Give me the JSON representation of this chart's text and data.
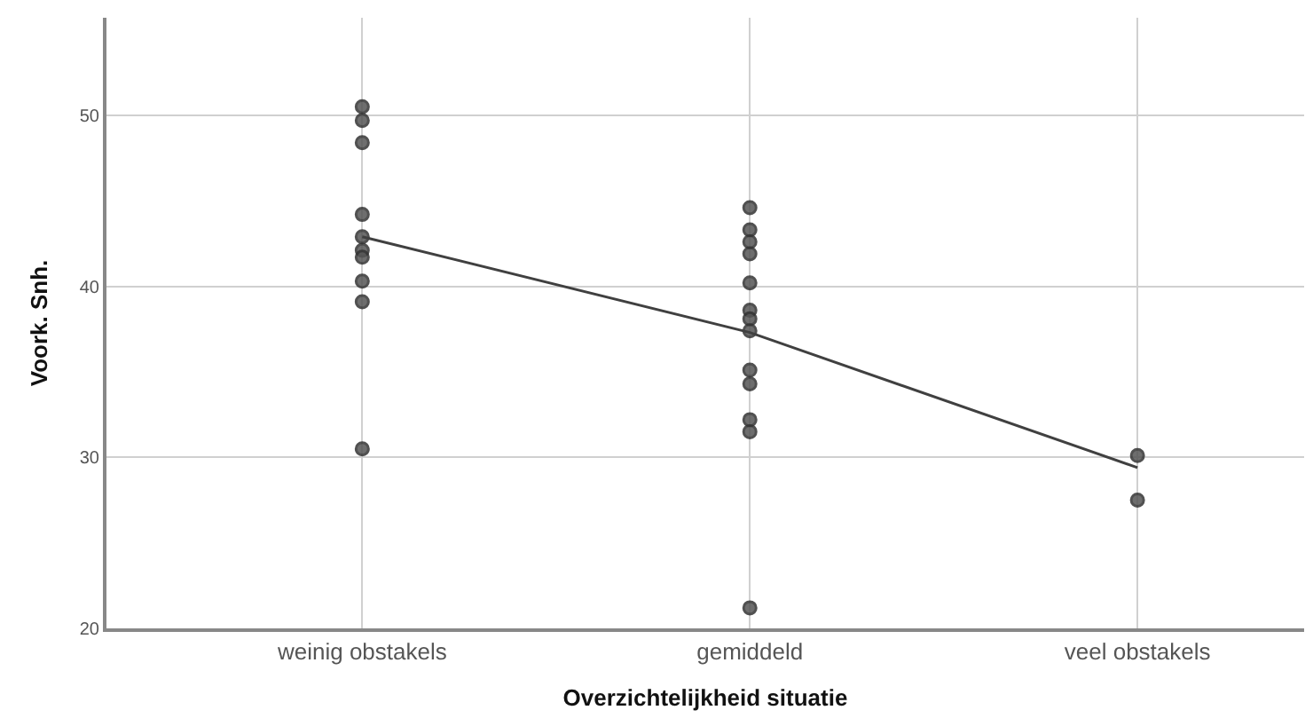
{
  "chart_data": {
    "type": "scatter",
    "xlabel": "Overzichtelijkheid situatie",
    "ylabel": "Voork. Snh.",
    "categories": [
      "weinig obstakels",
      "gemiddeld",
      "veel obstakels"
    ],
    "series": [
      {
        "color": "#555555",
        "marker": "circle",
        "x": [
          "weinig obstakels",
          "weinig obstakels",
          "weinig obstakels",
          "weinig obstakels",
          "weinig obstakels",
          "weinig obstakels",
          "weinig obstakels",
          "weinig obstakels",
          "weinig obstakels",
          "weinig obstakels",
          "gemiddeld",
          "gemiddeld",
          "gemiddeld",
          "gemiddeld",
          "gemiddeld",
          "gemiddeld",
          "gemiddeld",
          "gemiddeld",
          "gemiddeld",
          "gemiddeld",
          "gemiddeld",
          "gemiddeld",
          "gemiddeld",
          "veel obstakels",
          "veel obstakels"
        ],
        "values": [
          50.5,
          49.7,
          48.4,
          44.2,
          42.9,
          42.1,
          41.7,
          40.3,
          39.1,
          30.5,
          44.6,
          43.3,
          42.6,
          41.9,
          40.2,
          38.6,
          38.1,
          37.4,
          35.1,
          34.3,
          32.2,
          31.5,
          21.2,
          30.1,
          27.5
        ]
      },
      {
        "type": "line",
        "color": "#404040",
        "marker": "none",
        "line_style": "solid",
        "x": [
          "weinig obstakels",
          "gemiddeld",
          "veel obstakels"
        ],
        "values": [
          42.9,
          37.3,
          29.4
        ]
      }
    ],
    "ylim": [
      20,
      55.7
    ],
    "yticks": [
      20,
      30,
      40,
      50
    ],
    "grid": true,
    "legend": false
  }
}
